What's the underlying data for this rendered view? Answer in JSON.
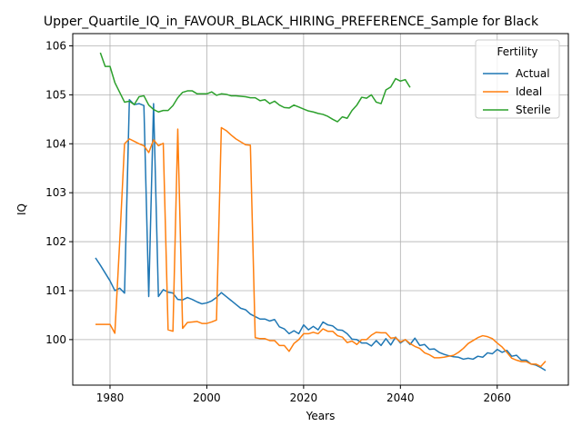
{
  "chart_data": {
    "type": "line",
    "title": "Upper_Quartile_IQ_in_FAVOUR_BLACK_HIRING_PREFERENCE_Sample for Black",
    "xlabel": "Years",
    "ylabel": "IQ",
    "xlim": [
      1972.3,
      2074.7
    ],
    "ylim": [
      99.07,
      106.25
    ],
    "xticks": [
      1980,
      2000,
      2020,
      2040,
      2060
    ],
    "yticks": [
      100,
      101,
      102,
      103,
      104,
      105,
      106
    ],
    "grid": true,
    "legend": {
      "title": "Fertility",
      "placement": "top-right"
    },
    "series": [
      {
        "name": "Actual",
        "color": "#1f77b4",
        "x": [
          1977,
          1978,
          1979,
          1980,
          1981,
          1982,
          1983,
          1984,
          1985,
          1986,
          1987,
          1988,
          1989,
          1990,
          1991,
          1992,
          1993,
          1994,
          1995,
          1996,
          1997,
          1998,
          1999,
          2000,
          2001,
          2002,
          2003,
          2004,
          2005,
          2006,
          2007,
          2008,
          2009,
          2010,
          2011,
          2012,
          2013,
          2014,
          2015,
          2016,
          2017,
          2018,
          2019,
          2020,
          2021,
          2022,
          2023,
          2024,
          2025,
          2026,
          2027,
          2028,
          2029,
          2030,
          2031,
          2032,
          2033,
          2034,
          2035,
          2036,
          2037,
          2038,
          2039,
          2040,
          2041,
          2042,
          2043,
          2044,
          2045,
          2046,
          2047,
          2048,
          2049,
          2050,
          2051,
          2052,
          2053,
          2054,
          2055,
          2056,
          2057,
          2058,
          2059,
          2060,
          2061,
          2062,
          2063,
          2064,
          2065,
          2066,
          2067,
          2068,
          2069,
          2070
        ],
        "values": [
          101.67,
          101.52,
          101.36,
          101.2,
          101.0,
          101.05,
          100.95,
          104.9,
          104.8,
          104.82,
          104.78,
          100.88,
          104.82,
          100.88,
          101.02,
          100.97,
          100.95,
          100.82,
          100.81,
          100.86,
          100.82,
          100.77,
          100.73,
          100.75,
          100.79,
          100.86,
          100.96,
          100.88,
          100.8,
          100.72,
          100.64,
          100.61,
          100.52,
          100.47,
          100.42,
          100.42,
          100.38,
          100.41,
          100.26,
          100.22,
          100.12,
          100.18,
          100.12,
          100.3,
          100.2,
          100.27,
          100.2,
          100.36,
          100.3,
          100.28,
          100.2,
          100.19,
          100.12,
          100.01,
          100.0,
          99.93,
          99.93,
          99.87,
          99.98,
          99.88,
          100.02,
          99.89,
          100.05,
          99.93,
          100.0,
          99.9,
          100.03,
          99.88,
          99.9,
          99.8,
          99.81,
          99.74,
          99.7,
          99.67,
          99.65,
          99.64,
          99.6,
          99.62,
          99.6,
          99.66,
          99.64,
          99.73,
          99.71,
          99.8,
          99.74,
          99.78,
          99.66,
          99.68,
          99.58,
          99.58,
          99.5,
          99.48,
          99.43,
          99.37
        ]
      },
      {
        "name": "Ideal",
        "color": "#ff7f0e",
        "x": [
          1977,
          1978,
          1979,
          1980,
          1981,
          1982,
          1983,
          1984,
          1985,
          1986,
          1987,
          1988,
          1989,
          1990,
          1991,
          1992,
          1993,
          1994,
          1995,
          1996,
          1997,
          1998,
          1999,
          2000,
          2001,
          2002,
          2003,
          2004,
          2005,
          2006,
          2007,
          2008,
          2009,
          2010,
          2011,
          2012,
          2013,
          2014,
          2015,
          2016,
          2017,
          2018,
          2019,
          2020,
          2021,
          2022,
          2023,
          2024,
          2025,
          2026,
          2027,
          2028,
          2029,
          2030,
          2031,
          2032,
          2033,
          2034,
          2035,
          2036,
          2037,
          2038,
          2039,
          2040,
          2041,
          2042,
          2043,
          2044,
          2045,
          2046,
          2047,
          2048,
          2049,
          2050,
          2051,
          2052,
          2053,
          2054,
          2055,
          2056,
          2057,
          2058,
          2059,
          2060,
          2061,
          2062,
          2063,
          2064,
          2065,
          2066,
          2067,
          2068,
          2069,
          2070
        ],
        "values": [
          100.31,
          100.31,
          100.31,
          100.31,
          100.13,
          102.0,
          104.0,
          104.1,
          104.05,
          104.0,
          103.96,
          103.82,
          104.08,
          103.96,
          104.01,
          100.2,
          100.17,
          104.3,
          100.23,
          100.35,
          100.36,
          100.37,
          100.33,
          100.33,
          100.36,
          100.4,
          104.33,
          104.27,
          104.18,
          104.1,
          104.04,
          103.98,
          103.97,
          100.04,
          100.02,
          100.02,
          99.98,
          99.98,
          99.88,
          99.88,
          99.76,
          99.92,
          100.0,
          100.12,
          100.12,
          100.15,
          100.12,
          100.22,
          100.17,
          100.17,
          100.08,
          100.05,
          99.94,
          99.97,
          99.9,
          100.0,
          100.0,
          100.09,
          100.15,
          100.14,
          100.14,
          100.03,
          100.04,
          99.95,
          100.0,
          99.92,
          99.86,
          99.82,
          99.73,
          99.69,
          99.63,
          99.63,
          99.64,
          99.66,
          99.68,
          99.74,
          99.82,
          99.92,
          99.98,
          100.04,
          100.08,
          100.06,
          100.02,
          99.93,
          99.85,
          99.74,
          99.62,
          99.58,
          99.55,
          99.55,
          99.5,
          99.5,
          99.45,
          99.56
        ]
      },
      {
        "name": "Sterile",
        "color": "#2ca02c",
        "x": [
          1978,
          1979,
          1980,
          1981,
          1982,
          1983,
          1984,
          1985,
          1986,
          1987,
          1988,
          1989,
          1990,
          1991,
          1992,
          1993,
          1994,
          1995,
          1996,
          1997,
          1998,
          1999,
          2000,
          2001,
          2002,
          2003,
          2004,
          2005,
          2006,
          2007,
          2008,
          2009,
          2010,
          2011,
          2012,
          2013,
          2014,
          2015,
          2016,
          2017,
          2018,
          2019,
          2020,
          2021,
          2022,
          2023,
          2024,
          2025,
          2026,
          2027,
          2028,
          2029,
          2030,
          2031,
          2032,
          2033,
          2034,
          2035,
          2036,
          2037,
          2038,
          2039,
          2040,
          2041,
          2042,
          2043
        ],
        "values": [
          105.86,
          105.58,
          105.58,
          105.25,
          105.05,
          104.85,
          104.87,
          104.8,
          104.96,
          104.98,
          104.79,
          104.7,
          104.65,
          104.68,
          104.68,
          104.78,
          104.94,
          105.05,
          105.08,
          105.08,
          105.02,
          105.02,
          105.02,
          105.06,
          104.99,
          105.02,
          105.01,
          104.98,
          104.98,
          104.97,
          104.96,
          104.94,
          104.94,
          104.88,
          104.9,
          104.82,
          104.87,
          104.79,
          104.74,
          104.73,
          104.79,
          104.75,
          104.71,
          104.67,
          104.65,
          104.62,
          104.6,
          104.56,
          104.5,
          104.45,
          104.55,
          104.52,
          104.68,
          104.79,
          104.95,
          104.93,
          105.0,
          104.85,
          104.82,
          105.1,
          105.16,
          105.33,
          105.28,
          105.31,
          105.15,
          null
        ]
      }
    ]
  }
}
